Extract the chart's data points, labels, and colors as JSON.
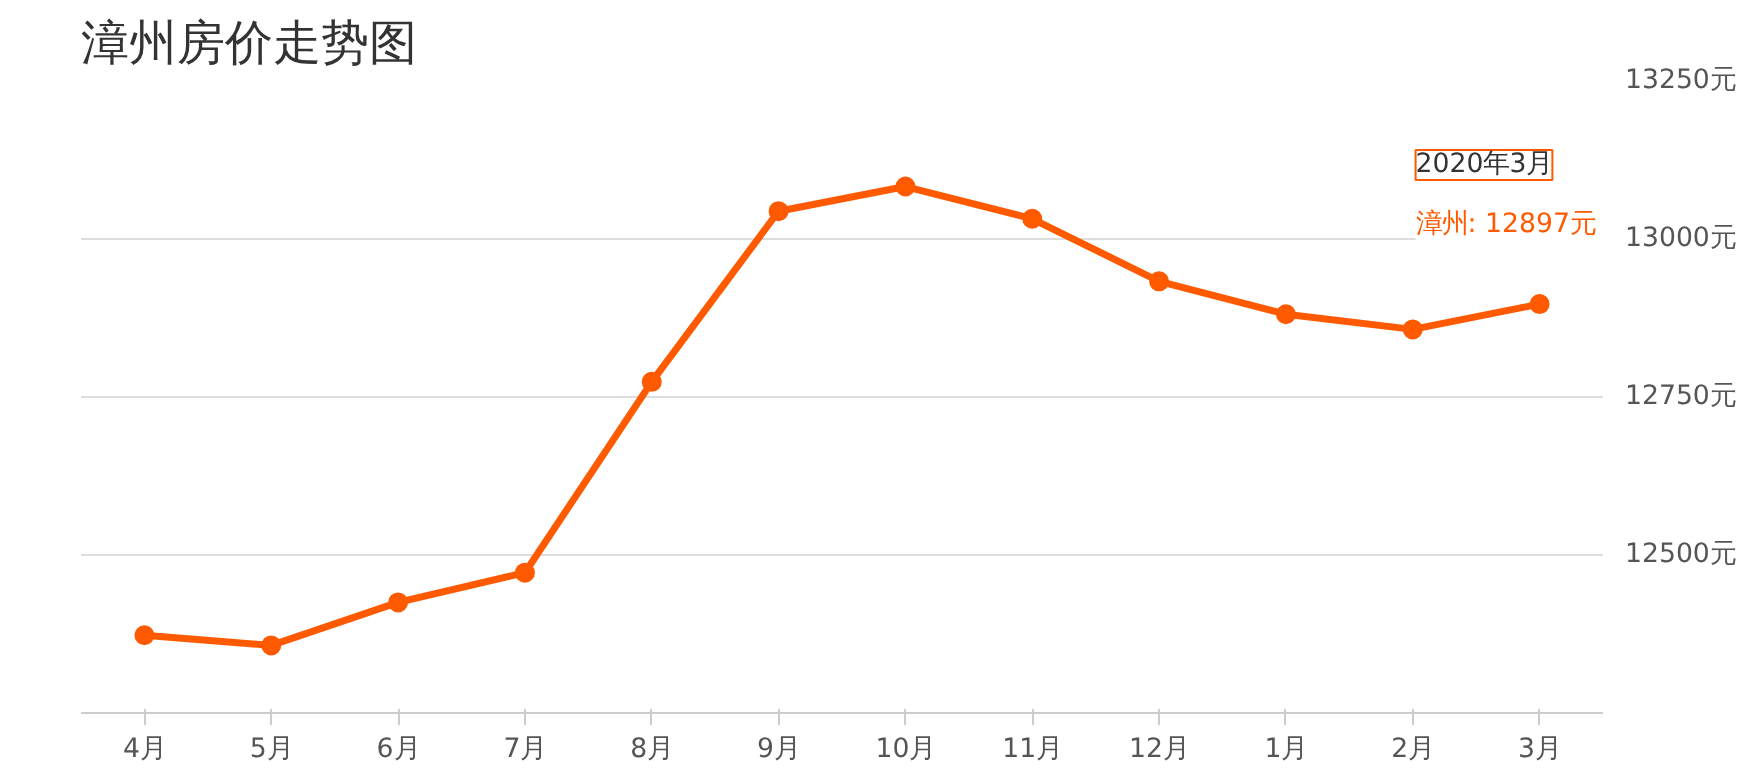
{
  "chart_data": {
    "type": "line",
    "title": "漳州房价走势图",
    "categories": [
      "4月",
      "5月",
      "6月",
      "7月",
      "8月",
      "9月",
      "10月",
      "11月",
      "12月",
      "1月",
      "2月",
      "3月"
    ],
    "series": [
      {
        "color": "#ff5a00",
        "values": [
          12373,
          12357,
          12425,
          12472,
          12774,
          13044,
          13083,
          13032,
          12933,
          12881,
          12857,
          12897
        ]
      }
    ],
    "ylim": [
      12250,
      13250
    ],
    "yticks": [
      {
        "value": 12250,
        "label": null
      },
      {
        "value": 12500,
        "label": "12500元"
      },
      {
        "value": 12750,
        "label": "12750元"
      },
      {
        "value": 13000,
        "label": "13000元"
      },
      {
        "value": 13250,
        "label": "13250元"
      }
    ],
    "grid": "y",
    "marker": "circle",
    "line_style": "solid",
    "annotations": [
      "2020年3月",
      "漳州:  12897元"
    ]
  }
}
